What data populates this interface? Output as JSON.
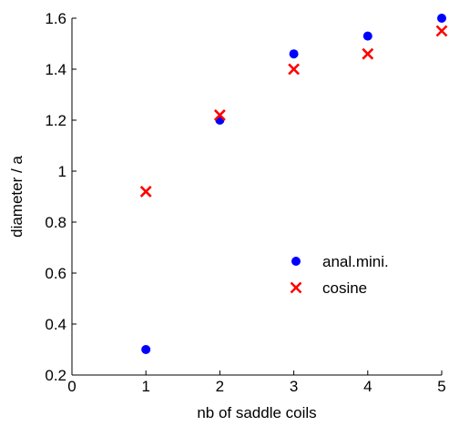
{
  "chart_data": {
    "type": "scatter",
    "title": "",
    "xlabel": "nb of saddle coils",
    "ylabel": "diameter / a",
    "xlim": [
      0,
      5
    ],
    "ylim": [
      0.2,
      1.6
    ],
    "xticks": [
      0,
      1,
      2,
      3,
      4,
      5
    ],
    "yticks": [
      0.2,
      0.4,
      0.6,
      0.8,
      1,
      1.2,
      1.4,
      1.6
    ],
    "xtick_labels": [
      "0",
      "1",
      "2",
      "3",
      "4",
      "5"
    ],
    "ytick_labels": [
      "0.2",
      "0.4",
      "0.6",
      "0.8",
      "1",
      "1.2",
      "1.4",
      "1.6"
    ],
    "grid": false,
    "legend_position": "right",
    "series": [
      {
        "name": "anal.mini.",
        "marker": "circle",
        "color": "#0000ff",
        "x": [
          1,
          2,
          3,
          4,
          5
        ],
        "y": [
          0.3,
          1.2,
          1.46,
          1.53,
          1.6
        ]
      },
      {
        "name": "cosine",
        "marker": "x",
        "color": "#ff0000",
        "x": [
          1,
          2,
          3,
          4,
          5
        ],
        "y": [
          0.92,
          1.22,
          1.4,
          1.46,
          1.55
        ]
      }
    ]
  }
}
